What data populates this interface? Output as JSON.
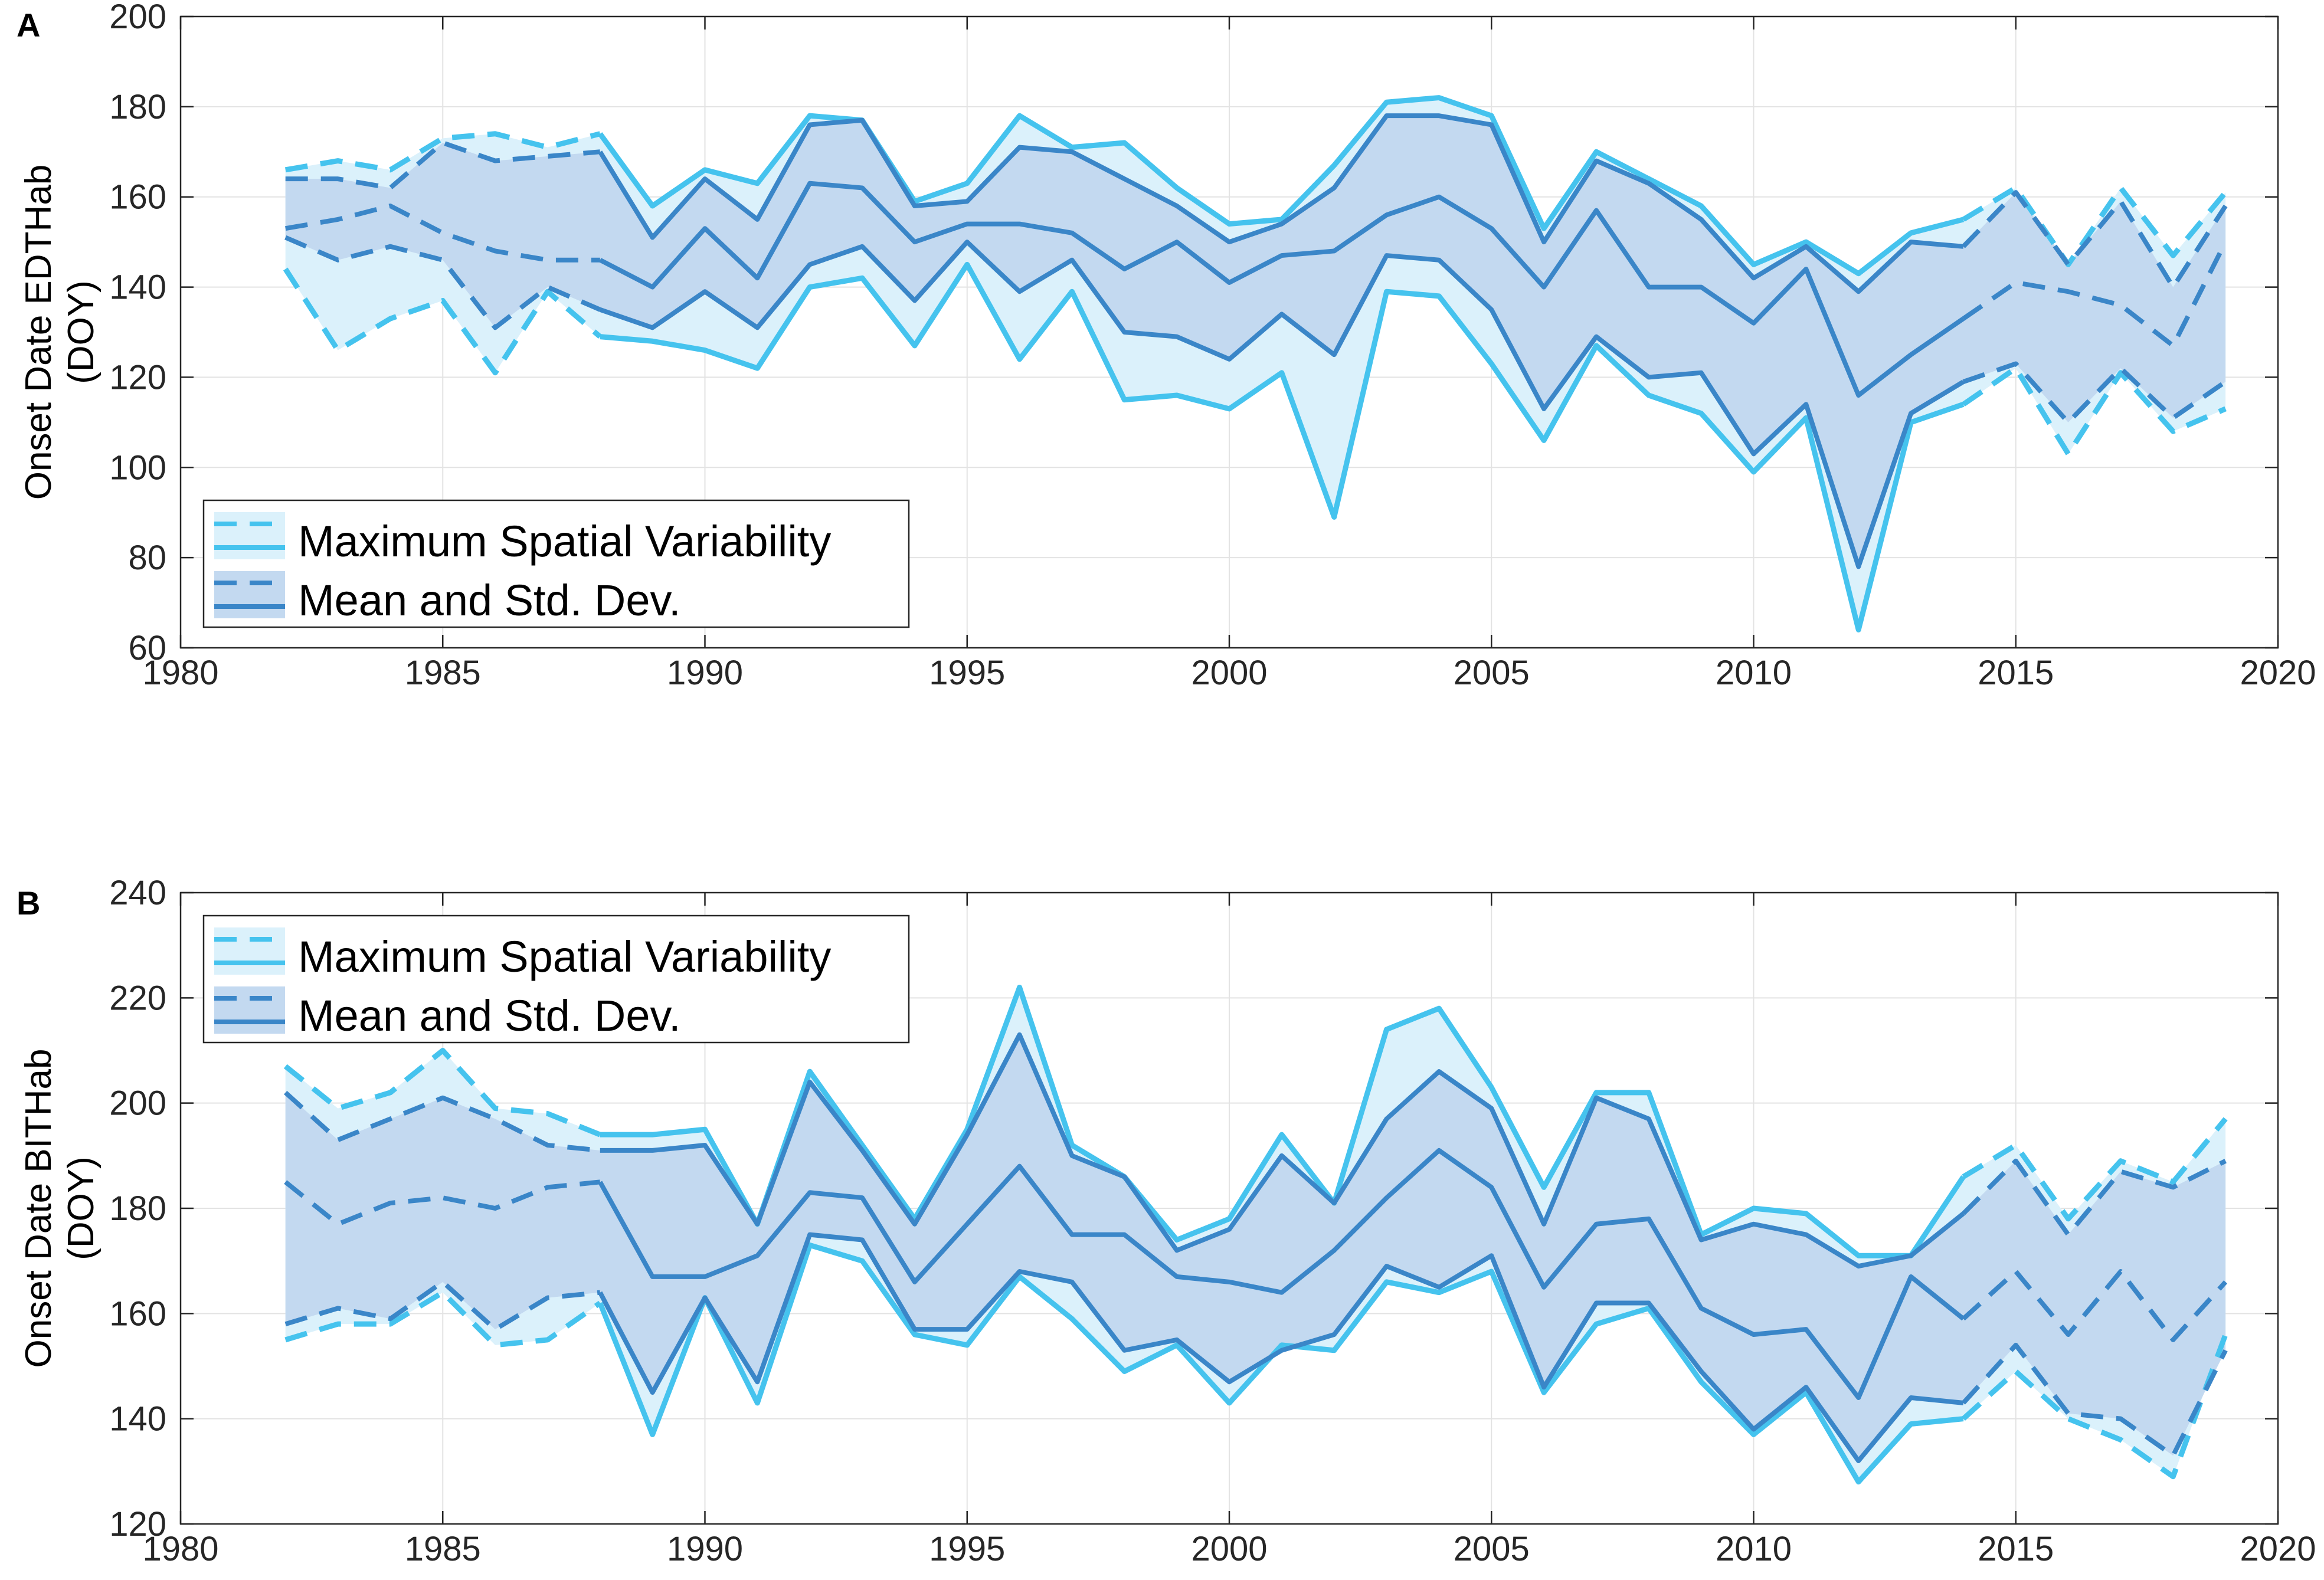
{
  "colors": {
    "light": "#45C3EE",
    "dark": "#3A86C8",
    "light_fill": "#DBF1FB",
    "dark_fill": "#C3D9F0",
    "grid": "#e3e3e3",
    "axis": "#262626"
  },
  "chart_data": [
    {
      "panel_label": "A",
      "type": "line",
      "ylabel_line1": "Onset Date EDTHab",
      "ylabel_line2": "(DOY)",
      "xlim": [
        1980,
        2020
      ],
      "ylim": [
        60,
        200
      ],
      "xticks": [
        1980,
        1985,
        1990,
        1995,
        2000,
        2005,
        2010,
        2015,
        2020
      ],
      "yticks": [
        60,
        80,
        100,
        120,
        140,
        160,
        180,
        200
      ],
      "legend": {
        "position": "bottom-left",
        "entries": [
          "Maximum Spatial Variability",
          "Mean and Std. Dev."
        ]
      },
      "x": [
        1982,
        1983,
        1984,
        1985,
        1986,
        1987,
        1988,
        1989,
        1990,
        1991,
        1992,
        1993,
        1994,
        1995,
        1996,
        1997,
        1998,
        1999,
        2000,
        2001,
        2002,
        2003,
        2004,
        2005,
        2006,
        2007,
        2008,
        2009,
        2010,
        2011,
        2012,
        2013,
        2014,
        2015,
        2016,
        2017,
        2018,
        2019
      ],
      "solid_from_year": 1988,
      "solid_to_year": 2014,
      "series": [
        {
          "name": "Maximum Spatial Variability (upper)",
          "style": "light",
          "values": [
            166,
            168,
            166,
            173,
            174,
            171,
            174,
            158,
            166,
            163,
            178,
            177,
            159,
            163,
            178,
            171,
            172,
            162,
            154,
            155,
            167,
            181,
            182,
            178,
            153,
            170,
            164,
            158,
            145,
            150,
            143,
            152,
            155,
            162,
            145,
            162,
            147,
            161
          ]
        },
        {
          "name": "Maximum Spatial Variability (lower)",
          "style": "light",
          "values": [
            144,
            126,
            133,
            137,
            121,
            139,
            129,
            128,
            126,
            122,
            140,
            142,
            127,
            145,
            124,
            139,
            115,
            116,
            113,
            121,
            89,
            139,
            138,
            123,
            106,
            127,
            116,
            112,
            99,
            111,
            64,
            110,
            114,
            122,
            103,
            121,
            108,
            113
          ]
        },
        {
          "name": "Mean + Std. Dev.",
          "style": "dark",
          "values": [
            164,
            164,
            162,
            172,
            168,
            169,
            170,
            151,
            164,
            155,
            176,
            177,
            158,
            159,
            171,
            170,
            164,
            158,
            150,
            154,
            162,
            178,
            178,
            176,
            150,
            168,
            163,
            155,
            142,
            149,
            139,
            150,
            149,
            161,
            145,
            159,
            140,
            158
          ]
        },
        {
          "name": "Mean",
          "style": "dark",
          "values": [
            153,
            155,
            158,
            152,
            148,
            146,
            146,
            140,
            153,
            142,
            163,
            162,
            150,
            154,
            154,
            152,
            144,
            150,
            141,
            147,
            148,
            156,
            160,
            153,
            140,
            157,
            140,
            140,
            132,
            144,
            116,
            125,
            133,
            141,
            139,
            136,
            127,
            150
          ]
        },
        {
          "name": "Mean - Std. Dev.",
          "style": "dark",
          "values": [
            151,
            146,
            149,
            146,
            131,
            140,
            135,
            131,
            139,
            131,
            145,
            149,
            137,
            150,
            139,
            146,
            130,
            129,
            124,
            134,
            125,
            147,
            146,
            135,
            113,
            129,
            120,
            121,
            103,
            114,
            78,
            112,
            119,
            123,
            110,
            122,
            111,
            119
          ]
        }
      ]
    },
    {
      "panel_label": "B",
      "type": "line",
      "ylabel_line1": "Onset Date BITHab",
      "ylabel_line2": "(DOY)",
      "xlim": [
        1980,
        2020
      ],
      "ylim": [
        120,
        240
      ],
      "xticks": [
        1980,
        1985,
        1990,
        1995,
        2000,
        2005,
        2010,
        2015,
        2020
      ],
      "yticks": [
        120,
        140,
        160,
        180,
        200,
        220,
        240
      ],
      "legend": {
        "position": "top-left",
        "entries": [
          "Maximum Spatial Variability",
          "Mean and Std. Dev."
        ]
      },
      "x": [
        1982,
        1983,
        1984,
        1985,
        1986,
        1987,
        1988,
        1989,
        1990,
        1991,
        1992,
        1993,
        1994,
        1995,
        1996,
        1997,
        1998,
        1999,
        2000,
        2001,
        2002,
        2003,
        2004,
        2005,
        2006,
        2007,
        2008,
        2009,
        2010,
        2011,
        2012,
        2013,
        2014,
        2015,
        2016,
        2017,
        2018,
        2019
      ],
      "solid_from_year": 1988,
      "solid_to_year": 2014,
      "series": [
        {
          "name": "Maximum Spatial Variability (upper)",
          "style": "light",
          "values": [
            207,
            199,
            202,
            210,
            199,
            198,
            194,
            194,
            195,
            177,
            206,
            192,
            178,
            195,
            222,
            192,
            186,
            174,
            178,
            194,
            181,
            214,
            218,
            203,
            184,
            202,
            202,
            175,
            180,
            179,
            171,
            171,
            186,
            192,
            178,
            189,
            185,
            197
          ]
        },
        {
          "name": "Maximum Spatial Variability (lower)",
          "style": "light",
          "values": [
            155,
            158,
            158,
            164,
            154,
            155,
            162,
            137,
            163,
            143,
            173,
            170,
            156,
            154,
            167,
            159,
            149,
            154,
            143,
            154,
            153,
            166,
            164,
            168,
            145,
            158,
            161,
            147,
            137,
            145,
            128,
            139,
            140,
            149,
            140,
            136,
            129,
            156
          ]
        },
        {
          "name": "Mean + Std. Dev.",
          "style": "dark",
          "values": [
            202,
            193,
            197,
            201,
            197,
            192,
            191,
            191,
            192,
            177,
            204,
            191,
            177,
            194,
            213,
            190,
            186,
            172,
            176,
            190,
            181,
            197,
            206,
            199,
            177,
            201,
            197,
            174,
            177,
            175,
            169,
            171,
            179,
            189,
            175,
            187,
            184,
            189
          ]
        },
        {
          "name": "Mean",
          "style": "dark",
          "values": [
            185,
            177,
            181,
            182,
            180,
            184,
            185,
            167,
            167,
            171,
            183,
            182,
            166,
            177,
            188,
            175,
            175,
            167,
            166,
            164,
            172,
            182,
            191,
            184,
            165,
            177,
            178,
            161,
            156,
            157,
            144,
            167,
            159,
            168,
            156,
            168,
            155,
            166
          ]
        },
        {
          "name": "Mean - Std. Dev.",
          "style": "dark",
          "values": [
            158,
            161,
            159,
            166,
            157,
            163,
            164,
            145,
            163,
            147,
            175,
            174,
            157,
            157,
            168,
            166,
            153,
            155,
            147,
            153,
            156,
            169,
            165,
            171,
            146,
            162,
            162,
            149,
            138,
            146,
            132,
            144,
            143,
            154,
            141,
            140,
            133,
            153
          ]
        }
      ]
    }
  ]
}
